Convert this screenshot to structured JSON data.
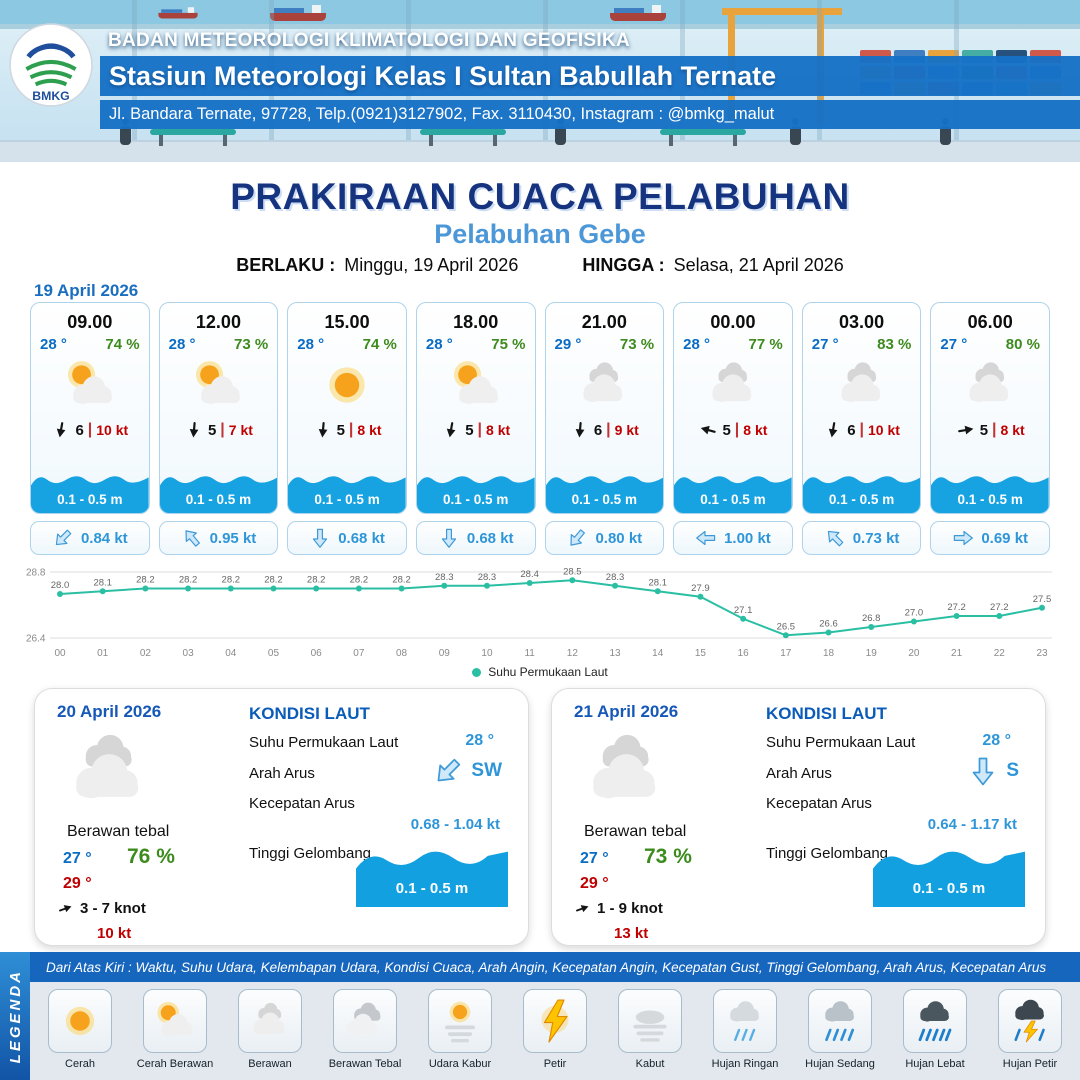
{
  "ui": {
    "wind_sep": "|"
  },
  "header": {
    "org": "BADAN METEOROLOGI KLIMATOLOGI DAN GEOFISIKA",
    "station": "Stasiun Meteorologi Kelas I Sultan Babullah Ternate",
    "address": "Jl. Bandara Ternate, 97728, Telp.(0921)3127902, Fax. 3110430, Instagram : @bmkg_malut",
    "logo_text": "BMKG"
  },
  "title": {
    "main": "PRAKIRAAN CUACA PELABUHAN",
    "subtitle": "Pelabuhan Gebe",
    "berlaku_label": "BERLAKU :",
    "berlaku_value": "Minggu, 19 April 2026",
    "hingga_label": "HINGGA :",
    "hingga_value": "Selasa, 21 April 2026"
  },
  "forecast_date": "19 April 2026",
  "forecast_cards": [
    {
      "time": "09.00",
      "temp": "28 °",
      "humidity": "74 %",
      "icon": "sun-cloud",
      "wind_dir_deg": 100,
      "wind_val": "6",
      "wind_speed": "10 kt",
      "wave": "0.1 - 0.5 m",
      "current_dir_deg": 135,
      "current_speed": "0.84 kt"
    },
    {
      "time": "12.00",
      "temp": "28 °",
      "humidity": "73 %",
      "icon": "sun-cloud",
      "wind_dir_deg": 95,
      "wind_val": "5",
      "wind_speed": "7 kt",
      "wave": "0.1 - 0.5 m",
      "current_dir_deg": 230,
      "current_speed": "0.95 kt"
    },
    {
      "time": "15.00",
      "temp": "28 °",
      "humidity": "74 %",
      "icon": "sun",
      "wind_dir_deg": 95,
      "wind_val": "5",
      "wind_speed": "8 kt",
      "wave": "0.1 - 0.5 m",
      "current_dir_deg": 90,
      "current_speed": "0.68 kt"
    },
    {
      "time": "18.00",
      "temp": "28 °",
      "humidity": "75 %",
      "icon": "sun-cloud",
      "wind_dir_deg": 100,
      "wind_val": "5",
      "wind_speed": "8 kt",
      "wave": "0.1 - 0.5 m",
      "current_dir_deg": 90,
      "current_speed": "0.68 kt"
    },
    {
      "time": "21.00",
      "temp": "29 °",
      "humidity": "73 %",
      "icon": "cloud",
      "wind_dir_deg": 95,
      "wind_val": "6",
      "wind_speed": "9 kt",
      "wave": "0.1 - 0.5 m",
      "current_dir_deg": 130,
      "current_speed": "0.80 kt"
    },
    {
      "time": "00.00",
      "temp": "28 °",
      "humidity": "77 %",
      "icon": "cloud",
      "wind_dir_deg": 195,
      "wind_val": "5",
      "wind_speed": "8 kt",
      "wave": "0.1 - 0.5 m",
      "current_dir_deg": 180,
      "current_speed": "1.00 kt"
    },
    {
      "time": "03.00",
      "temp": "27 °",
      "humidity": "83 %",
      "icon": "cloud",
      "wind_dir_deg": 100,
      "wind_val": "6",
      "wind_speed": "10 kt",
      "wave": "0.1 - 0.5 m",
      "current_dir_deg": 225,
      "current_speed": "0.73 kt"
    },
    {
      "time": "06.00",
      "temp": "27 °",
      "humidity": "80 %",
      "icon": "cloud",
      "wind_dir_deg": 350,
      "wind_val": "5",
      "wind_speed": "8 kt",
      "wave": "0.1 - 0.5 m",
      "current_dir_deg": 0,
      "current_speed": "0.69 kt"
    }
  ],
  "chart_data": {
    "type": "line",
    "legend": "Suhu Permukaan Laut",
    "x": [
      "00",
      "01",
      "02",
      "03",
      "04",
      "05",
      "06",
      "07",
      "08",
      "09",
      "10",
      "11",
      "12",
      "13",
      "14",
      "15",
      "16",
      "17",
      "18",
      "19",
      "20",
      "21",
      "22",
      "23"
    ],
    "values": [
      28.0,
      28.1,
      28.2,
      28.2,
      28.2,
      28.2,
      28.2,
      28.2,
      28.2,
      28.3,
      28.3,
      28.4,
      28.5,
      28.3,
      28.1,
      27.9,
      27.1,
      26.5,
      26.6,
      26.8,
      27.0,
      27.2,
      27.2,
      27.5
    ],
    "ylim": [
      26.4,
      28.8
    ],
    "grid": true,
    "legend_position": "bottom",
    "line_color": "#2abfa3"
  },
  "daily_cards": [
    {
      "date": "20 April 2026",
      "icon": "cloud",
      "condition": "Berawan tebal",
      "temp_min": "27 °",
      "humidity": "76 %",
      "temp_max": "29 °",
      "wind_dir_deg": 340,
      "wind_range": "3  - 7 knot",
      "gust": "10 kt",
      "sea": {
        "title": "KONDISI LAUT",
        "sst_label": "Suhu Permukaan Laut",
        "sst": "28 °",
        "current_dir_label": "Arah Arus",
        "current_dir": "SW",
        "current_dir_deg": 135,
        "current_speed_label": "Kecepatan Arus",
        "current_speed": "0.68  - 1.04 kt",
        "wave_label": "Tinggi Gelombang",
        "wave": "0.1 - 0.5 m"
      }
    },
    {
      "date": "21 April 2026",
      "icon": "cloud",
      "condition": "Berawan tebal",
      "temp_min": "27 °",
      "humidity": "73 %",
      "temp_max": "29 °",
      "wind_dir_deg": 340,
      "wind_range": "1  - 9 knot",
      "gust": "13 kt",
      "sea": {
        "title": "KONDISI LAUT",
        "sst_label": "Suhu Permukaan Laut",
        "sst": "28 °",
        "current_dir_label": "Arah Arus",
        "current_dir": "S",
        "current_dir_deg": 90,
        "current_speed_label": "Kecepatan Arus",
        "current_speed": "0.64  - 1.17 kt",
        "wave_label": "Tinggi Gelombang",
        "wave": "0.1 - 0.5 m"
      }
    }
  ],
  "legend": {
    "vertical_label": "LEGENDA",
    "description": "Dari Atas Kiri : Waktu, Suhu Udara, Kelembapan Udara, Kondisi Cuaca, Arah Angin, Kecepatan Angin, Kecepatan Gust, Tinggi Gelombang, Arah Arus, Kecepatan Arus",
    "items": [
      {
        "label": "Cerah",
        "icon": "sun"
      },
      {
        "label": "Cerah Berawan",
        "icon": "sun-cloud"
      },
      {
        "label": "Berawan",
        "icon": "cloud"
      },
      {
        "label": "Berawan Tebal",
        "icon": "clouds"
      },
      {
        "label": "Udara Kabur",
        "icon": "haze"
      },
      {
        "label": "Petir",
        "icon": "lightning"
      },
      {
        "label": "Kabut",
        "icon": "fog"
      },
      {
        "label": "Hujan Ringan",
        "icon": "rain-light"
      },
      {
        "label": "Hujan Sedang",
        "icon": "rain-medium"
      },
      {
        "label": "Hujan Lebat",
        "icon": "rain-heavy"
      },
      {
        "label": "Hujan Petir",
        "icon": "thunderstorm"
      }
    ]
  }
}
